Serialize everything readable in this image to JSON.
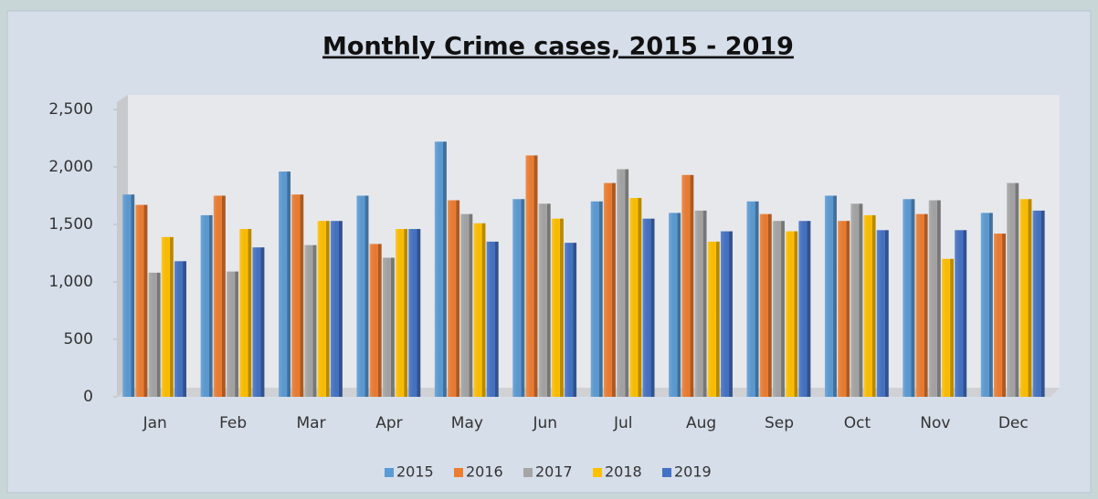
{
  "chart_data": {
    "type": "bar",
    "title": "Monthly Crime cases, 2015 - 2019",
    "categories": [
      "Jan",
      "Feb",
      "Mar",
      "Apr",
      "May",
      "Jun",
      "Jul",
      "Aug",
      "Sep",
      "Oct",
      "Nov",
      "Dec"
    ],
    "series": [
      {
        "name": "2015",
        "color": "#5b9bd5",
        "values": [
          1760,
          1580,
          1960,
          1750,
          2220,
          1720,
          1700,
          1600,
          1700,
          1750,
          1720,
          1600
        ]
      },
      {
        "name": "2016",
        "color": "#ed7d31",
        "values": [
          1670,
          1750,
          1760,
          1330,
          1710,
          2100,
          1860,
          1930,
          1590,
          1530,
          1590,
          1420
        ]
      },
      {
        "name": "2017",
        "color": "#a5a5a5",
        "values": [
          1080,
          1090,
          1320,
          1210,
          1590,
          1680,
          1980,
          1620,
          1530,
          1680,
          1710,
          1860
        ]
      },
      {
        "name": "2018",
        "color": "#ffc000",
        "values": [
          1390,
          1460,
          1530,
          1460,
          1510,
          1550,
          1730,
          1350,
          1440,
          1580,
          1200,
          1720
        ]
      },
      {
        "name": "2019",
        "color": "#4472c4",
        "values": [
          1180,
          1300,
          1530,
          1460,
          1350,
          1340,
          1550,
          1440,
          1530,
          1450,
          1450,
          1620
        ]
      }
    ],
    "ylim": [
      0,
      2500
    ],
    "yticks": [
      0,
      500,
      {
        "value": 1000,
        "label": "1,000"
      },
      {
        "value": 1500,
        "label": "1,500"
      },
      {
        "value": 2000,
        "label": "2,000"
      },
      {
        "value": 2500,
        "label": "2,500"
      }
    ],
    "legend": "bottom"
  }
}
